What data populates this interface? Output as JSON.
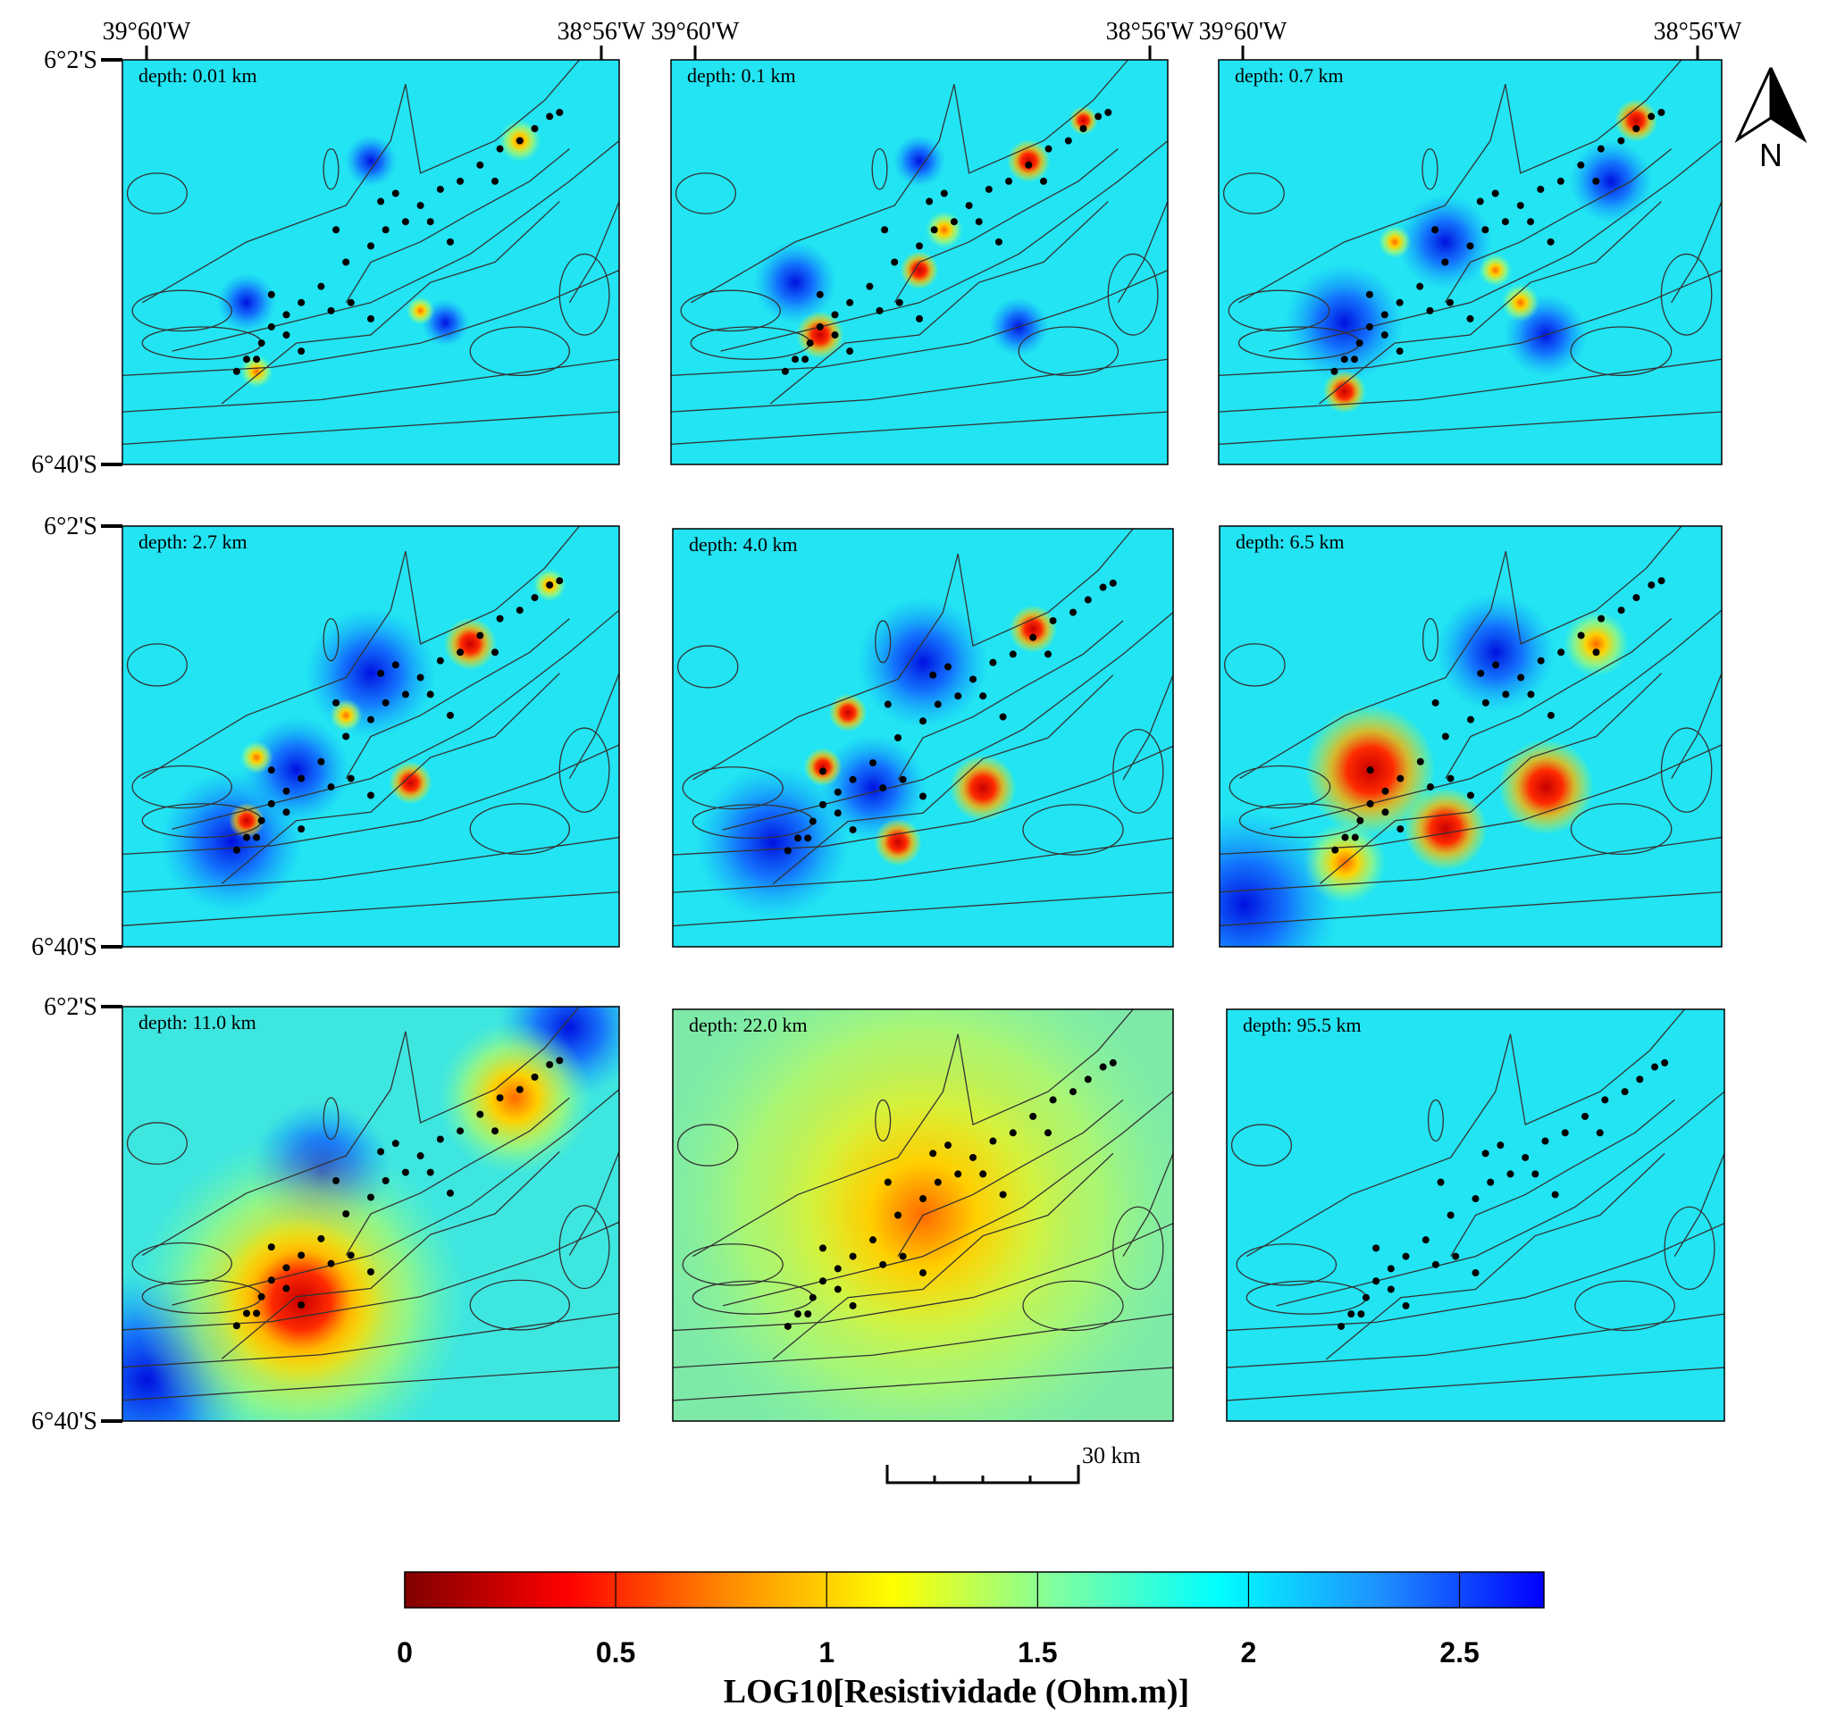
{
  "panels": [
    {
      "depth": "depth:  0.01 km"
    },
    {
      "depth": "depth:  0.1 km"
    },
    {
      "depth": "depth:  0.7 km"
    },
    {
      "depth": "depth:  2.7 km"
    },
    {
      "depth": "depth:  4.0 km"
    },
    {
      "depth": "depth:  6.5 km"
    },
    {
      "depth": "depth:  11.0 km"
    },
    {
      "depth": "depth:  22.0 km"
    },
    {
      "depth": "depth:  95.5 km"
    }
  ],
  "top_axes": [
    {
      "west": "39°60'W",
      "east": "38°56'W"
    },
    {
      "west": "39°60'W",
      "east": "38°56'W"
    },
    {
      "west": "39°60'W",
      "east": "38°56'W"
    }
  ],
  "rows": [
    {
      "north": "6°2'S",
      "south": "6°40'S"
    },
    {
      "north": "6°2'S",
      "south": "6°40'S"
    },
    {
      "north": "6°2'S",
      "south": "6°40'S"
    }
  ],
  "north_arrow": "N",
  "scale_bar": "30 km",
  "colorbar": {
    "title": "LOG10[Resistividade (Ohm.m)]",
    "range": [
      0,
      2.7
    ],
    "ticks": [
      0,
      0.5,
      1,
      1.5,
      2,
      2.5
    ],
    "colors": [
      "#7f0000",
      "#ff0000",
      "#ff8c00",
      "#ffff00",
      "#7fffa0",
      "#00ffff",
      "#1e90ff",
      "#0000ff"
    ]
  }
}
